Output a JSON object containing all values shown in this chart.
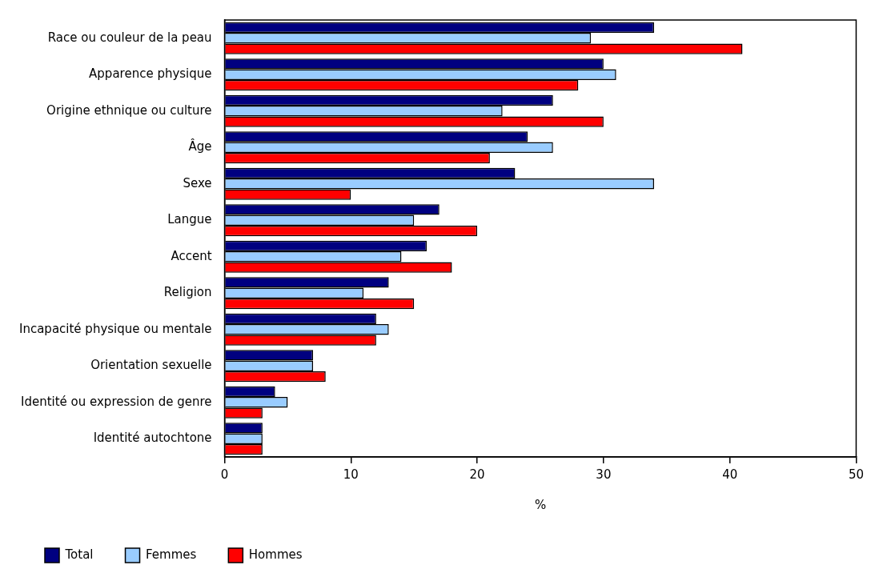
{
  "chart_data": {
    "type": "bar",
    "orientation": "horizontal",
    "xlabel": "%",
    "categories": [
      "Race ou couleur de la peau",
      "Apparence physique",
      "Origine ethnique ou culture",
      "Âge",
      "Sexe",
      "Langue",
      "Accent",
      "Religion",
      "Incapacité physique ou mentale",
      "Orientation sexuelle",
      "Identité ou expression de genre",
      "Identité autochtone"
    ],
    "series": [
      {
        "name": "Total",
        "color": "#000080",
        "values": [
          34,
          30,
          26,
          24,
          23,
          17,
          16,
          13,
          12,
          7,
          4,
          3
        ]
      },
      {
        "name": "Femmes",
        "color": "#99ccff",
        "values": [
          29,
          31,
          22,
          26,
          34,
          15,
          14,
          11,
          13,
          7,
          5,
          3
        ]
      },
      {
        "name": "Hommes",
        "color": "#ff0000",
        "values": [
          41,
          28,
          30,
          21,
          10,
          20,
          18,
          15,
          12,
          8,
          3,
          3
        ]
      }
    ],
    "xlim": [
      0,
      50
    ],
    "xticks": [
      0,
      10,
      20,
      30,
      40,
      50
    ],
    "grid": false,
    "legend": "bottom"
  }
}
